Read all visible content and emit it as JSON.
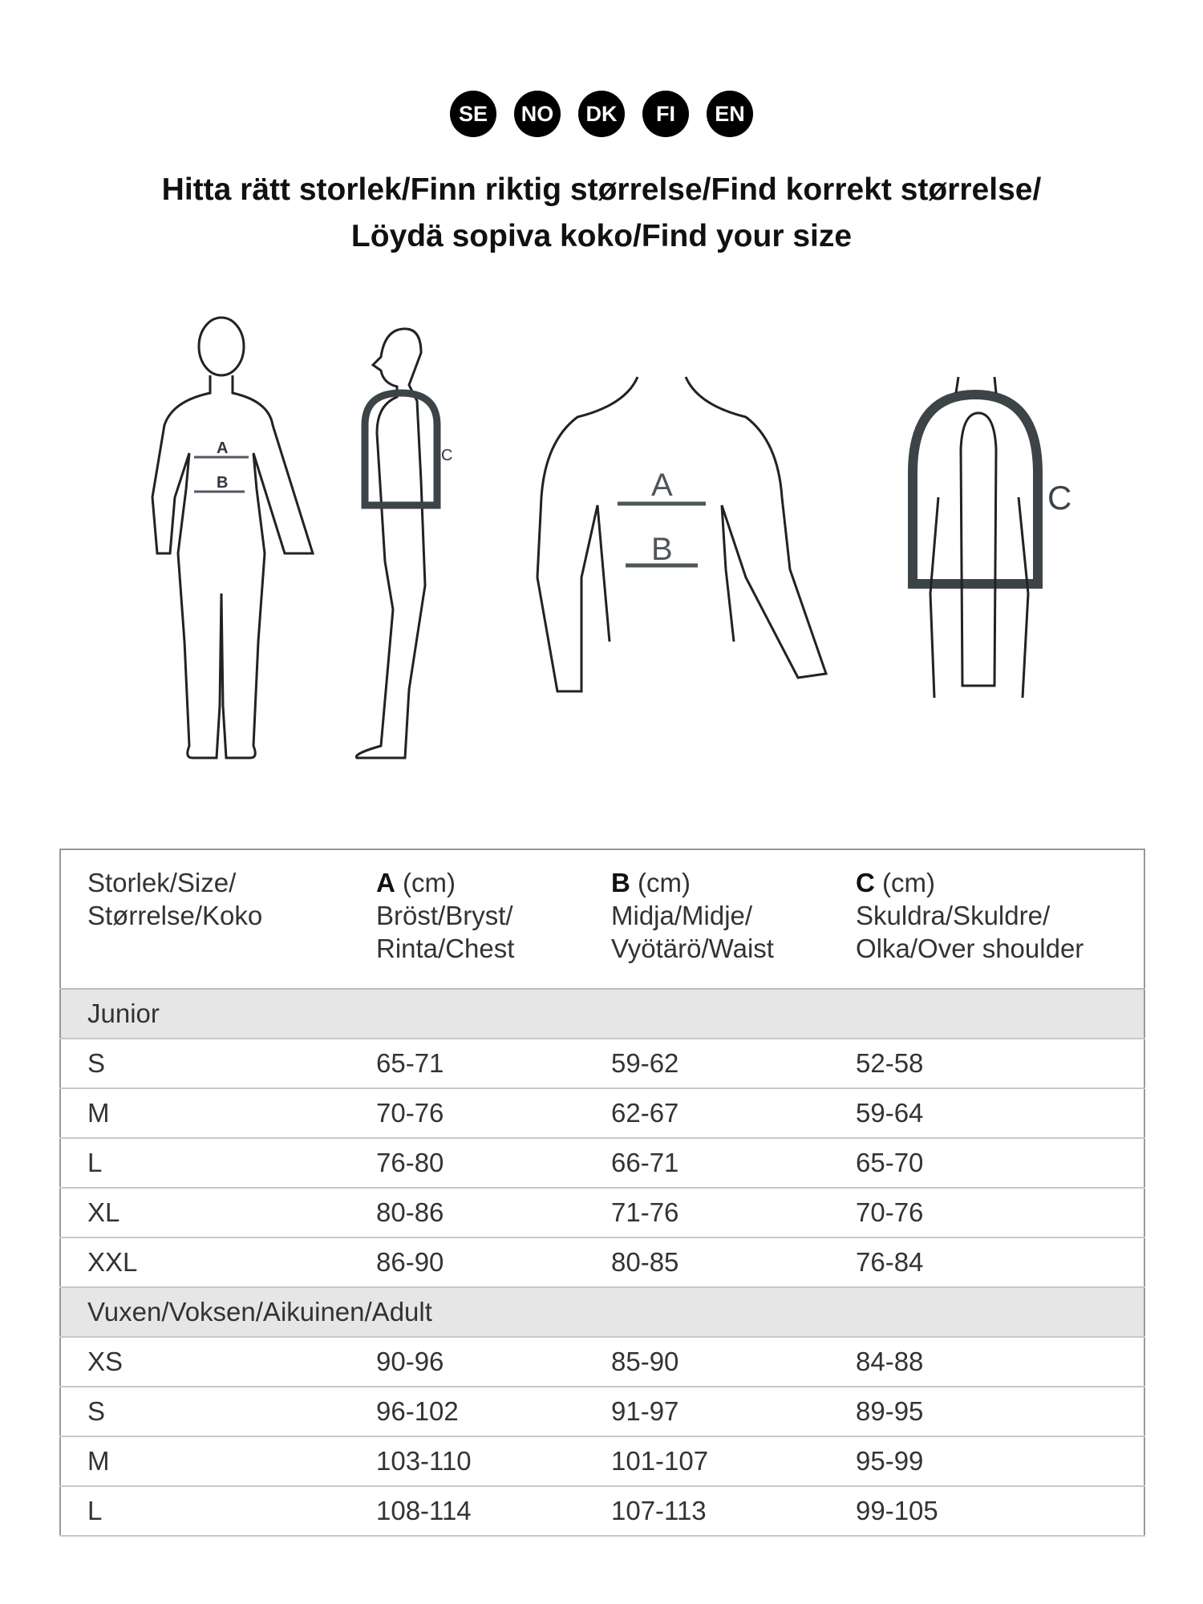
{
  "languages": [
    "SE",
    "NO",
    "DK",
    "FI",
    "EN"
  ],
  "title": {
    "line1": "Hitta rätt storlek/Finn riktig størrelse/Find korrekt størrelse/",
    "line2": "Löydä sopiva koko/Find your size"
  },
  "diagram": {
    "label_a": "A",
    "label_b": "B",
    "label_c": "C"
  },
  "table": {
    "header": {
      "size": [
        "Storlek/Size/",
        "Størrelse/Koko"
      ],
      "a": {
        "letter": "A",
        "unit": "(cm)",
        "lines": [
          "Bröst/Bryst/",
          "Rinta/Chest"
        ]
      },
      "b": {
        "letter": "B",
        "unit": "(cm)",
        "lines": [
          "Midja/Midje/",
          "Vyötärö/Waist"
        ]
      },
      "c": {
        "letter": "C",
        "unit": "(cm)",
        "lines": [
          "Skuldra/Skuldre/",
          "Olka/Over shoulder"
        ]
      }
    },
    "groups": [
      {
        "name": "Junior",
        "rows": [
          [
            "S",
            "65-71",
            "59-62",
            "52-58"
          ],
          [
            "M",
            "70-76",
            "62-67",
            "59-64"
          ],
          [
            "L",
            "76-80",
            "66-71",
            "65-70"
          ],
          [
            "XL",
            "80-86",
            "71-76",
            "70-76"
          ],
          [
            "XXL",
            "86-90",
            "80-85",
            "76-84"
          ]
        ]
      },
      {
        "name": "Vuxen/Voksen/Aikuinen/Adult",
        "rows": [
          [
            "XS",
            "90-96",
            "85-90",
            "84-88"
          ],
          [
            "S",
            "96-102",
            "91-97",
            "89-95"
          ],
          [
            "M",
            "103-110",
            "101-107",
            "95-99"
          ],
          [
            "L",
            "108-114",
            "107-113",
            "99-105"
          ]
        ]
      }
    ]
  }
}
